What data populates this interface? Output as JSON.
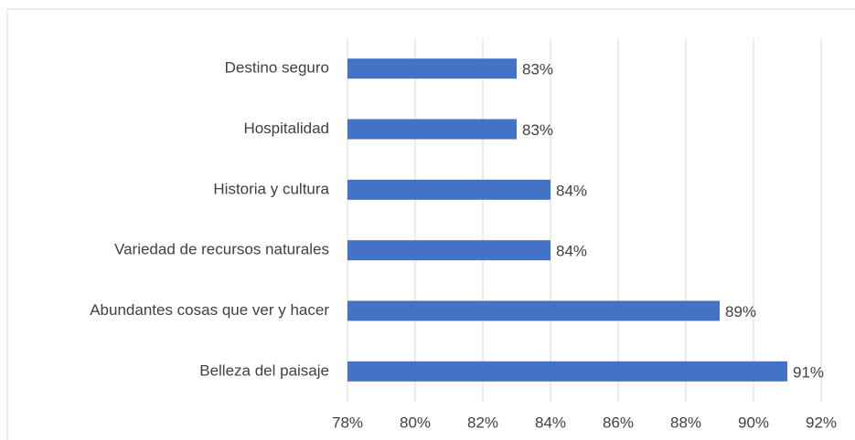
{
  "chart_data": {
    "type": "barh",
    "categories": [
      "Destino seguro",
      "Hospitalidad",
      "Historia y cultura",
      "Variedad de recursos naturales",
      "Abundantes cosas que ver y hacer",
      "Belleza del paisaje"
    ],
    "values": [
      83,
      83,
      84,
      84,
      89,
      91
    ],
    "value_labels": [
      "83%",
      "83%",
      "84%",
      "84%",
      "89%",
      "91%"
    ],
    "color": "#4472c4",
    "xlim": [
      78,
      92
    ],
    "xticks": [
      {
        "value": 78,
        "label": "78%"
      },
      {
        "value": 80,
        "label": "80%"
      },
      {
        "value": 82,
        "label": "82%"
      },
      {
        "value": 84,
        "label": "84%"
      },
      {
        "value": 86,
        "label": "86%"
      },
      {
        "value": 88,
        "label": "88%"
      },
      {
        "value": 90,
        "label": "90%"
      },
      {
        "value": 92,
        "label": "92%"
      }
    ],
    "grid": true
  }
}
